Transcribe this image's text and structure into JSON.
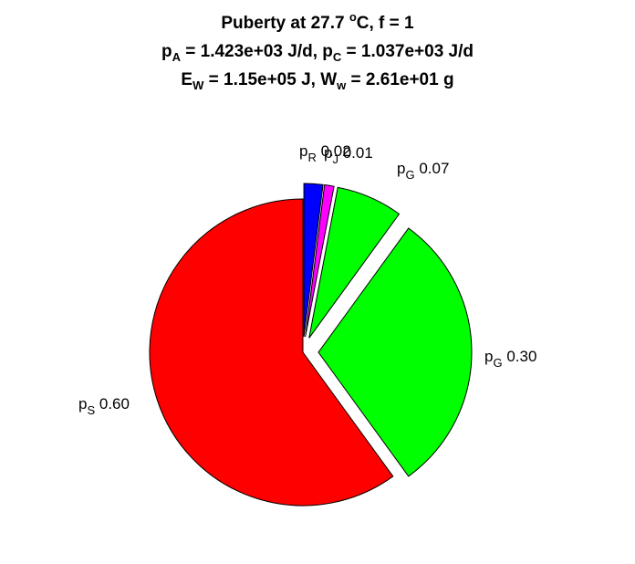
{
  "chart_data": {
    "type": "pie",
    "title_lines": [
      {
        "segments": [
          [
            "t",
            "Puberty at 27.7 "
          ],
          [
            "sup",
            "o"
          ],
          [
            "t",
            "C, f = 1"
          ]
        ]
      },
      {
        "segments": [
          [
            "t",
            "p"
          ],
          [
            "sub",
            "A"
          ],
          [
            "t",
            " = 1.423e+03 J/d,  p"
          ],
          [
            "sub",
            "C"
          ],
          [
            "t",
            " = 1.037e+03 J/d"
          ]
        ]
      },
      {
        "segments": [
          [
            "t",
            "E"
          ],
          [
            "sub",
            "W"
          ],
          [
            "t",
            " = 1.15e+05 J, W"
          ],
          [
            "sub",
            "w"
          ],
          [
            "t",
            " = 2.61e+01 g"
          ]
        ]
      }
    ],
    "slices": [
      {
        "symbol": "p",
        "subscript": "R",
        "value": 0.02,
        "value_label": "0.02",
        "color": "#0000ff",
        "exploded": true
      },
      {
        "symbol": "p",
        "subscript": "J",
        "value": 0.01,
        "value_label": "0.01",
        "color": "#ff00ff",
        "exploded": true
      },
      {
        "symbol": "p",
        "subscript": "G",
        "value": 0.07,
        "value_label": "0.07",
        "color": "#00ff00",
        "exploded": true
      },
      {
        "symbol": "p",
        "subscript": "G",
        "value": 0.3,
        "value_label": "0.30",
        "color": "#00ff00",
        "exploded": true
      },
      {
        "symbol": "p",
        "subscript": "S",
        "value": 0.6,
        "value_label": "0.60",
        "color": "#ff0000",
        "exploded": false
      }
    ],
    "start_angle": "12 o'clock",
    "direction": "clockwise",
    "legend": "none",
    "grid": false
  }
}
